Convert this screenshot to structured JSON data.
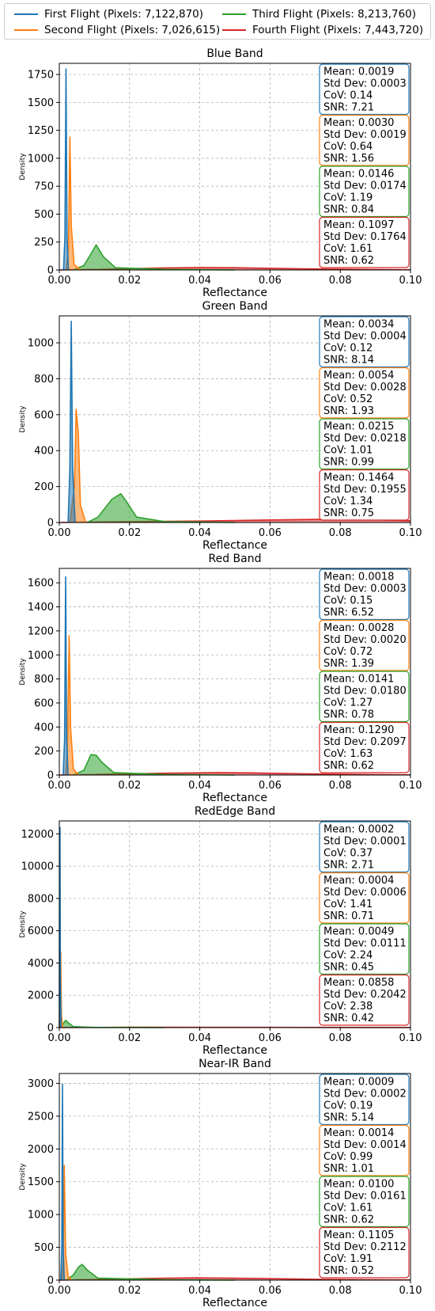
{
  "colors": {
    "first": "#1f77b4",
    "second": "#ff7f0e",
    "third": "#2ca02c",
    "fourth": "#d62728"
  },
  "legend": [
    {
      "label": "First Flight (Pixels: 7,122,870)",
      "color": "#1f77b4"
    },
    {
      "label": "Second Flight (Pixels: 7,026,615)",
      "color": "#ff7f0e"
    },
    {
      "label": "Third Flight (Pixels: 8,213,760)",
      "color": "#2ca02c"
    },
    {
      "label": "Fourth Flight (Pixels: 7,443,720)",
      "color": "#d62728"
    }
  ],
  "chart_data": [
    {
      "type": "area",
      "title": "Blue Band",
      "xlabel": "Reflectance",
      "ylabel": "Density",
      "xlim": [
        0,
        0.1
      ],
      "ylim": [
        0,
        1850
      ],
      "xticks": [
        "0.00",
        "0.02",
        "0.04",
        "0.06",
        "0.08",
        "0.10"
      ],
      "yticks": [
        0,
        250,
        500,
        750,
        1000,
        1250,
        1500,
        1750
      ],
      "grid": true,
      "series": [
        {
          "name": "First Flight",
          "color": "#1f77b4",
          "x": [
            0.0012,
            0.0016,
            0.0019,
            0.0022,
            0.0026
          ],
          "y": [
            0,
            300,
            1800,
            300,
            0
          ]
        },
        {
          "name": "Second Flight",
          "color": "#ff7f0e",
          "x": [
            0.002,
            0.0026,
            0.003,
            0.0034,
            0.0042,
            0.006
          ],
          "y": [
            0,
            200,
            1190,
            400,
            50,
            0
          ]
        },
        {
          "name": "Third Flight",
          "color": "#2ca02c",
          "x": [
            0.004,
            0.007,
            0.0095,
            0.0105,
            0.0125,
            0.016,
            0.03,
            0.05
          ],
          "y": [
            0,
            40,
            170,
            225,
            120,
            20,
            5,
            0
          ]
        },
        {
          "name": "Fourth Flight",
          "color": "#d62728",
          "x": [
            0.0,
            0.01,
            0.03,
            0.04,
            0.05,
            0.07,
            0.09,
            0.1
          ],
          "y": [
            0,
            5,
            18,
            22,
            20,
            10,
            4,
            2
          ]
        }
      ],
      "stats": [
        {
          "mean": "Mean: 0.0019",
          "std": "Std Dev: 0.0003",
          "cov": "CoV: 0.14",
          "snr": "SNR: 7.21"
        },
        {
          "mean": "Mean: 0.0030",
          "std": "Std Dev: 0.0019",
          "cov": "CoV: 0.64",
          "snr": "SNR: 1.56"
        },
        {
          "mean": "Mean: 0.0146",
          "std": "Std Dev: 0.0174",
          "cov": "CoV: 1.19",
          "snr": "SNR: 0.84"
        },
        {
          "mean": "Mean: 0.1097",
          "std": "Std Dev: 0.1764",
          "cov": "CoV: 1.61",
          "snr": "SNR: 0.62"
        }
      ]
    },
    {
      "type": "area",
      "title": "Green Band",
      "xlabel": "Reflectance",
      "ylabel": "Density",
      "xlim": [
        0,
        0.1
      ],
      "ylim": [
        0,
        1150
      ],
      "xticks": [
        "0.00",
        "0.02",
        "0.04",
        "0.06",
        "0.08",
        "0.10"
      ],
      "yticks": [
        0,
        200,
        400,
        600,
        800,
        1000
      ],
      "grid": true,
      "series": [
        {
          "name": "First Flight",
          "color": "#1f77b4",
          "x": [
            0.0025,
            0.003,
            0.0034,
            0.0038,
            0.0045
          ],
          "y": [
            0,
            300,
            1120,
            300,
            0
          ]
        },
        {
          "name": "Second Flight",
          "color": "#ff7f0e",
          "x": [
            0.003,
            0.0043,
            0.0048,
            0.0054,
            0.006,
            0.0075
          ],
          "y": [
            0,
            200,
            630,
            500,
            100,
            0
          ]
        },
        {
          "name": "Third Flight",
          "color": "#2ca02c",
          "x": [
            0.008,
            0.011,
            0.015,
            0.0175,
            0.019,
            0.022,
            0.03,
            0.05
          ],
          "y": [
            0,
            30,
            130,
            160,
            120,
            30,
            5,
            0
          ]
        },
        {
          "name": "Fourth Flight",
          "color": "#d62728",
          "x": [
            0.0,
            0.02,
            0.04,
            0.06,
            0.075,
            0.08,
            0.09,
            0.1
          ],
          "y": [
            0,
            5,
            8,
            14,
            18,
            20,
            15,
            10
          ]
        }
      ],
      "stats": [
        {
          "mean": "Mean: 0.0034",
          "std": "Std Dev: 0.0004",
          "cov": "CoV: 0.12",
          "snr": "SNR: 8.14"
        },
        {
          "mean": "Mean: 0.0054",
          "std": "Std Dev: 0.0028",
          "cov": "CoV: 0.52",
          "snr": "SNR: 1.93"
        },
        {
          "mean": "Mean: 0.0215",
          "std": "Std Dev: 0.0218",
          "cov": "CoV: 1.01",
          "snr": "SNR: 0.99"
        },
        {
          "mean": "Mean: 0.1464",
          "std": "Std Dev: 0.1955",
          "cov": "CoV: 1.34",
          "snr": "SNR: 0.75"
        }
      ]
    },
    {
      "type": "area",
      "title": "Red Band",
      "xlabel": "Reflectance",
      "ylabel": "Density",
      "xlim": [
        0,
        0.1
      ],
      "ylim": [
        0,
        1720
      ],
      "xticks": [
        "0.00",
        "0.02",
        "0.04",
        "0.06",
        "0.08",
        "0.10"
      ],
      "yticks": [
        0,
        200,
        400,
        600,
        800,
        1000,
        1200,
        1400,
        1600
      ],
      "grid": true,
      "series": [
        {
          "name": "First Flight",
          "color": "#1f77b4",
          "x": [
            0.0011,
            0.0015,
            0.0018,
            0.0021,
            0.0025
          ],
          "y": [
            0,
            300,
            1650,
            300,
            0
          ]
        },
        {
          "name": "Second Flight",
          "color": "#ff7f0e",
          "x": [
            0.0018,
            0.0023,
            0.0028,
            0.0032,
            0.004,
            0.0055
          ],
          "y": [
            0,
            200,
            1160,
            400,
            50,
            0
          ]
        },
        {
          "name": "Third Flight",
          "color": "#2ca02c",
          "x": [
            0.004,
            0.007,
            0.009,
            0.0105,
            0.012,
            0.0155,
            0.03,
            0.05
          ],
          "y": [
            0,
            40,
            170,
            165,
            110,
            20,
            5,
            0
          ]
        },
        {
          "name": "Fourth Flight",
          "color": "#d62728",
          "x": [
            0.0,
            0.01,
            0.03,
            0.045,
            0.055,
            0.07,
            0.09,
            0.1
          ],
          "y": [
            0,
            5,
            15,
            20,
            18,
            10,
            4,
            2
          ]
        }
      ],
      "stats": [
        {
          "mean": "Mean: 0.0018",
          "std": "Std Dev: 0.0003",
          "cov": "CoV: 0.15",
          "snr": "SNR: 6.52"
        },
        {
          "mean": "Mean: 0.0028",
          "std": "Std Dev: 0.0020",
          "cov": "CoV: 0.72",
          "snr": "SNR: 1.39"
        },
        {
          "mean": "Mean: 0.0141",
          "std": "Std Dev: 0.0180",
          "cov": "CoV: 1.27",
          "snr": "SNR: 0.78"
        },
        {
          "mean": "Mean: 0.1290",
          "std": "Std Dev: 0.2097",
          "cov": "CoV: 1.63",
          "snr": "SNR: 0.62"
        }
      ]
    },
    {
      "type": "area",
      "title": "RedEdge Band",
      "xlabel": "Reflectance",
      "ylabel": "Density",
      "xlim": [
        0,
        0.1
      ],
      "ylim": [
        0,
        12800
      ],
      "xticks": [
        "0.00",
        "0.02",
        "0.04",
        "0.06",
        "0.08",
        "0.10"
      ],
      "yticks": [
        0,
        2000,
        4000,
        6000,
        8000,
        10000,
        12000
      ],
      "grid": true,
      "series": [
        {
          "name": "First Flight",
          "color": "#1f77b4",
          "x": [
            0.0,
            0.0001,
            0.0002,
            0.0003,
            0.0005
          ],
          "y": [
            0,
            12000,
            12400,
            3000,
            0
          ]
        },
        {
          "name": "Second Flight",
          "color": "#ff7f0e",
          "x": [
            0.0,
            0.0002,
            0.0004,
            0.0006,
            0.001
          ],
          "y": [
            0,
            3000,
            4700,
            800,
            0
          ]
        },
        {
          "name": "Third Flight",
          "color": "#2ca02c",
          "x": [
            0.0,
            0.001,
            0.0018,
            0.0025,
            0.004,
            0.01,
            0.03
          ],
          "y": [
            0,
            200,
            450,
            300,
            60,
            10,
            0
          ]
        },
        {
          "name": "Fourth Flight",
          "color": "#d62728",
          "x": [
            0.0,
            0.02,
            0.05,
            0.08,
            0.1
          ],
          "y": [
            0,
            20,
            15,
            10,
            5
          ]
        }
      ],
      "stats": [
        {
          "mean": "Mean: 0.0002",
          "std": "Std Dev: 0.0001",
          "cov": "CoV: 0.37",
          "snr": "SNR: 2.71"
        },
        {
          "mean": "Mean: 0.0004",
          "std": "Std Dev: 0.0006",
          "cov": "CoV: 1.41",
          "snr": "SNR: 0.71"
        },
        {
          "mean": "Mean: 0.0049",
          "std": "Std Dev: 0.0111",
          "cov": "CoV: 2.24",
          "snr": "SNR: 0.45"
        },
        {
          "mean": "Mean: 0.0858",
          "std": "Std Dev: 0.2042",
          "cov": "CoV: 2.38",
          "snr": "SNR: 0.42"
        }
      ]
    },
    {
      "type": "area",
      "title": "Near-IR Band",
      "xlabel": "Reflectance",
      "ylabel": "Density",
      "xlim": [
        0,
        0.1
      ],
      "ylim": [
        0,
        3150
      ],
      "xticks": [
        "0.00",
        "0.02",
        "0.04",
        "0.06",
        "0.08",
        "0.10"
      ],
      "yticks": [
        0,
        500,
        1000,
        1500,
        2000,
        2500,
        3000
      ],
      "grid": true,
      "series": [
        {
          "name": "First Flight",
          "color": "#1f77b4",
          "x": [
            0.0004,
            0.0007,
            0.0009,
            0.0011,
            0.0014
          ],
          "y": [
            0,
            500,
            2990,
            500,
            0
          ]
        },
        {
          "name": "Second Flight",
          "color": "#ff7f0e",
          "x": [
            0.0007,
            0.0011,
            0.0014,
            0.0018,
            0.0025,
            0.0035
          ],
          "y": [
            0,
            300,
            1750,
            400,
            60,
            0
          ]
        },
        {
          "name": "Third Flight",
          "color": "#2ca02c",
          "x": [
            0.002,
            0.004,
            0.0055,
            0.0065,
            0.008,
            0.011,
            0.03,
            0.05
          ],
          "y": [
            0,
            80,
            200,
            240,
            150,
            30,
            5,
            0
          ]
        },
        {
          "name": "Fourth Flight",
          "color": "#d62728",
          "x": [
            0.0,
            0.01,
            0.03,
            0.04,
            0.05,
            0.07,
            0.09,
            0.1
          ],
          "y": [
            0,
            10,
            30,
            35,
            30,
            15,
            6,
            3
          ]
        }
      ],
      "stats": [
        {
          "mean": "Mean: 0.0009",
          "std": "Std Dev: 0.0002",
          "cov": "CoV: 0.19",
          "snr": "SNR: 5.14"
        },
        {
          "mean": "Mean: 0.0014",
          "std": "Std Dev: 0.0014",
          "cov": "CoV: 0.99",
          "snr": "SNR: 1.01"
        },
        {
          "mean": "Mean: 0.0100",
          "std": "Std Dev: 0.0161",
          "cov": "CoV: 1.61",
          "snr": "SNR: 0.62"
        },
        {
          "mean": "Mean: 0.1105",
          "std": "Std Dev: 0.2112",
          "cov": "CoV: 1.91",
          "snr": "SNR: 0.52"
        }
      ]
    }
  ]
}
